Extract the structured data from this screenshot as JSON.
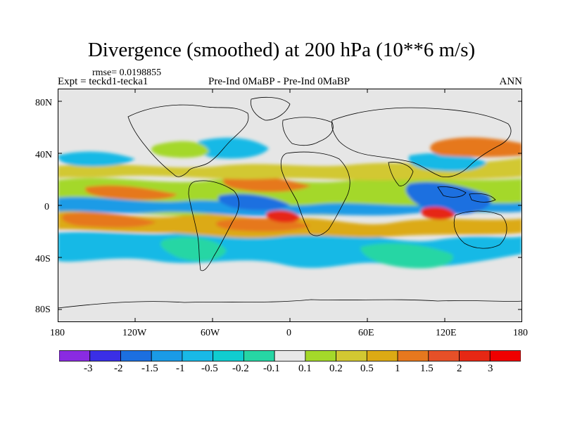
{
  "figure": {
    "title": "Divergence (smoothed) at 200 hPa (10**6 m/s)",
    "rmse_label": "rmse= 0.0198855",
    "expt_label": "Expt = teckd1-tecka1",
    "center_label": "Pre-Ind 0MaBP - Pre-Ind 0MaBP",
    "season": "ANN"
  },
  "axes": {
    "lat_ticks": [
      "80N",
      "40N",
      "0",
      "40S",
      "80S"
    ],
    "lon_ticks": [
      "180",
      "120W",
      "60W",
      "0",
      "60E",
      "120E",
      "180"
    ]
  },
  "colorbar": {
    "labels": [
      "-3",
      "-2",
      "-1.5",
      "-1",
      "-0.5",
      "-0.2",
      "-0.1",
      "0.1",
      "0.2",
      "0.5",
      "1",
      "1.5",
      "2",
      "3"
    ],
    "colors": [
      "#8a2be2",
      "#3a2fe6",
      "#1c6fe0",
      "#1a9be6",
      "#19b9e6",
      "#10cdd0",
      "#26d6a4",
      "#e8e8e8",
      "#a4d82a",
      "#d2c832",
      "#dcaa14",
      "#e6781e",
      "#e65028",
      "#e62814",
      "#f00000"
    ]
  },
  "map_colors": {
    "ocean_bg": "#e6e6e6",
    "dark_blue": "#1c6fe0",
    "mid_blue": "#1a9be6",
    "cyan": "#19b9e6",
    "teal": "#26d6a4",
    "lime": "#a4d82a",
    "olive": "#d2c832",
    "yellow": "#dcaa14",
    "orange": "#e6781e",
    "red": "#e62814"
  }
}
